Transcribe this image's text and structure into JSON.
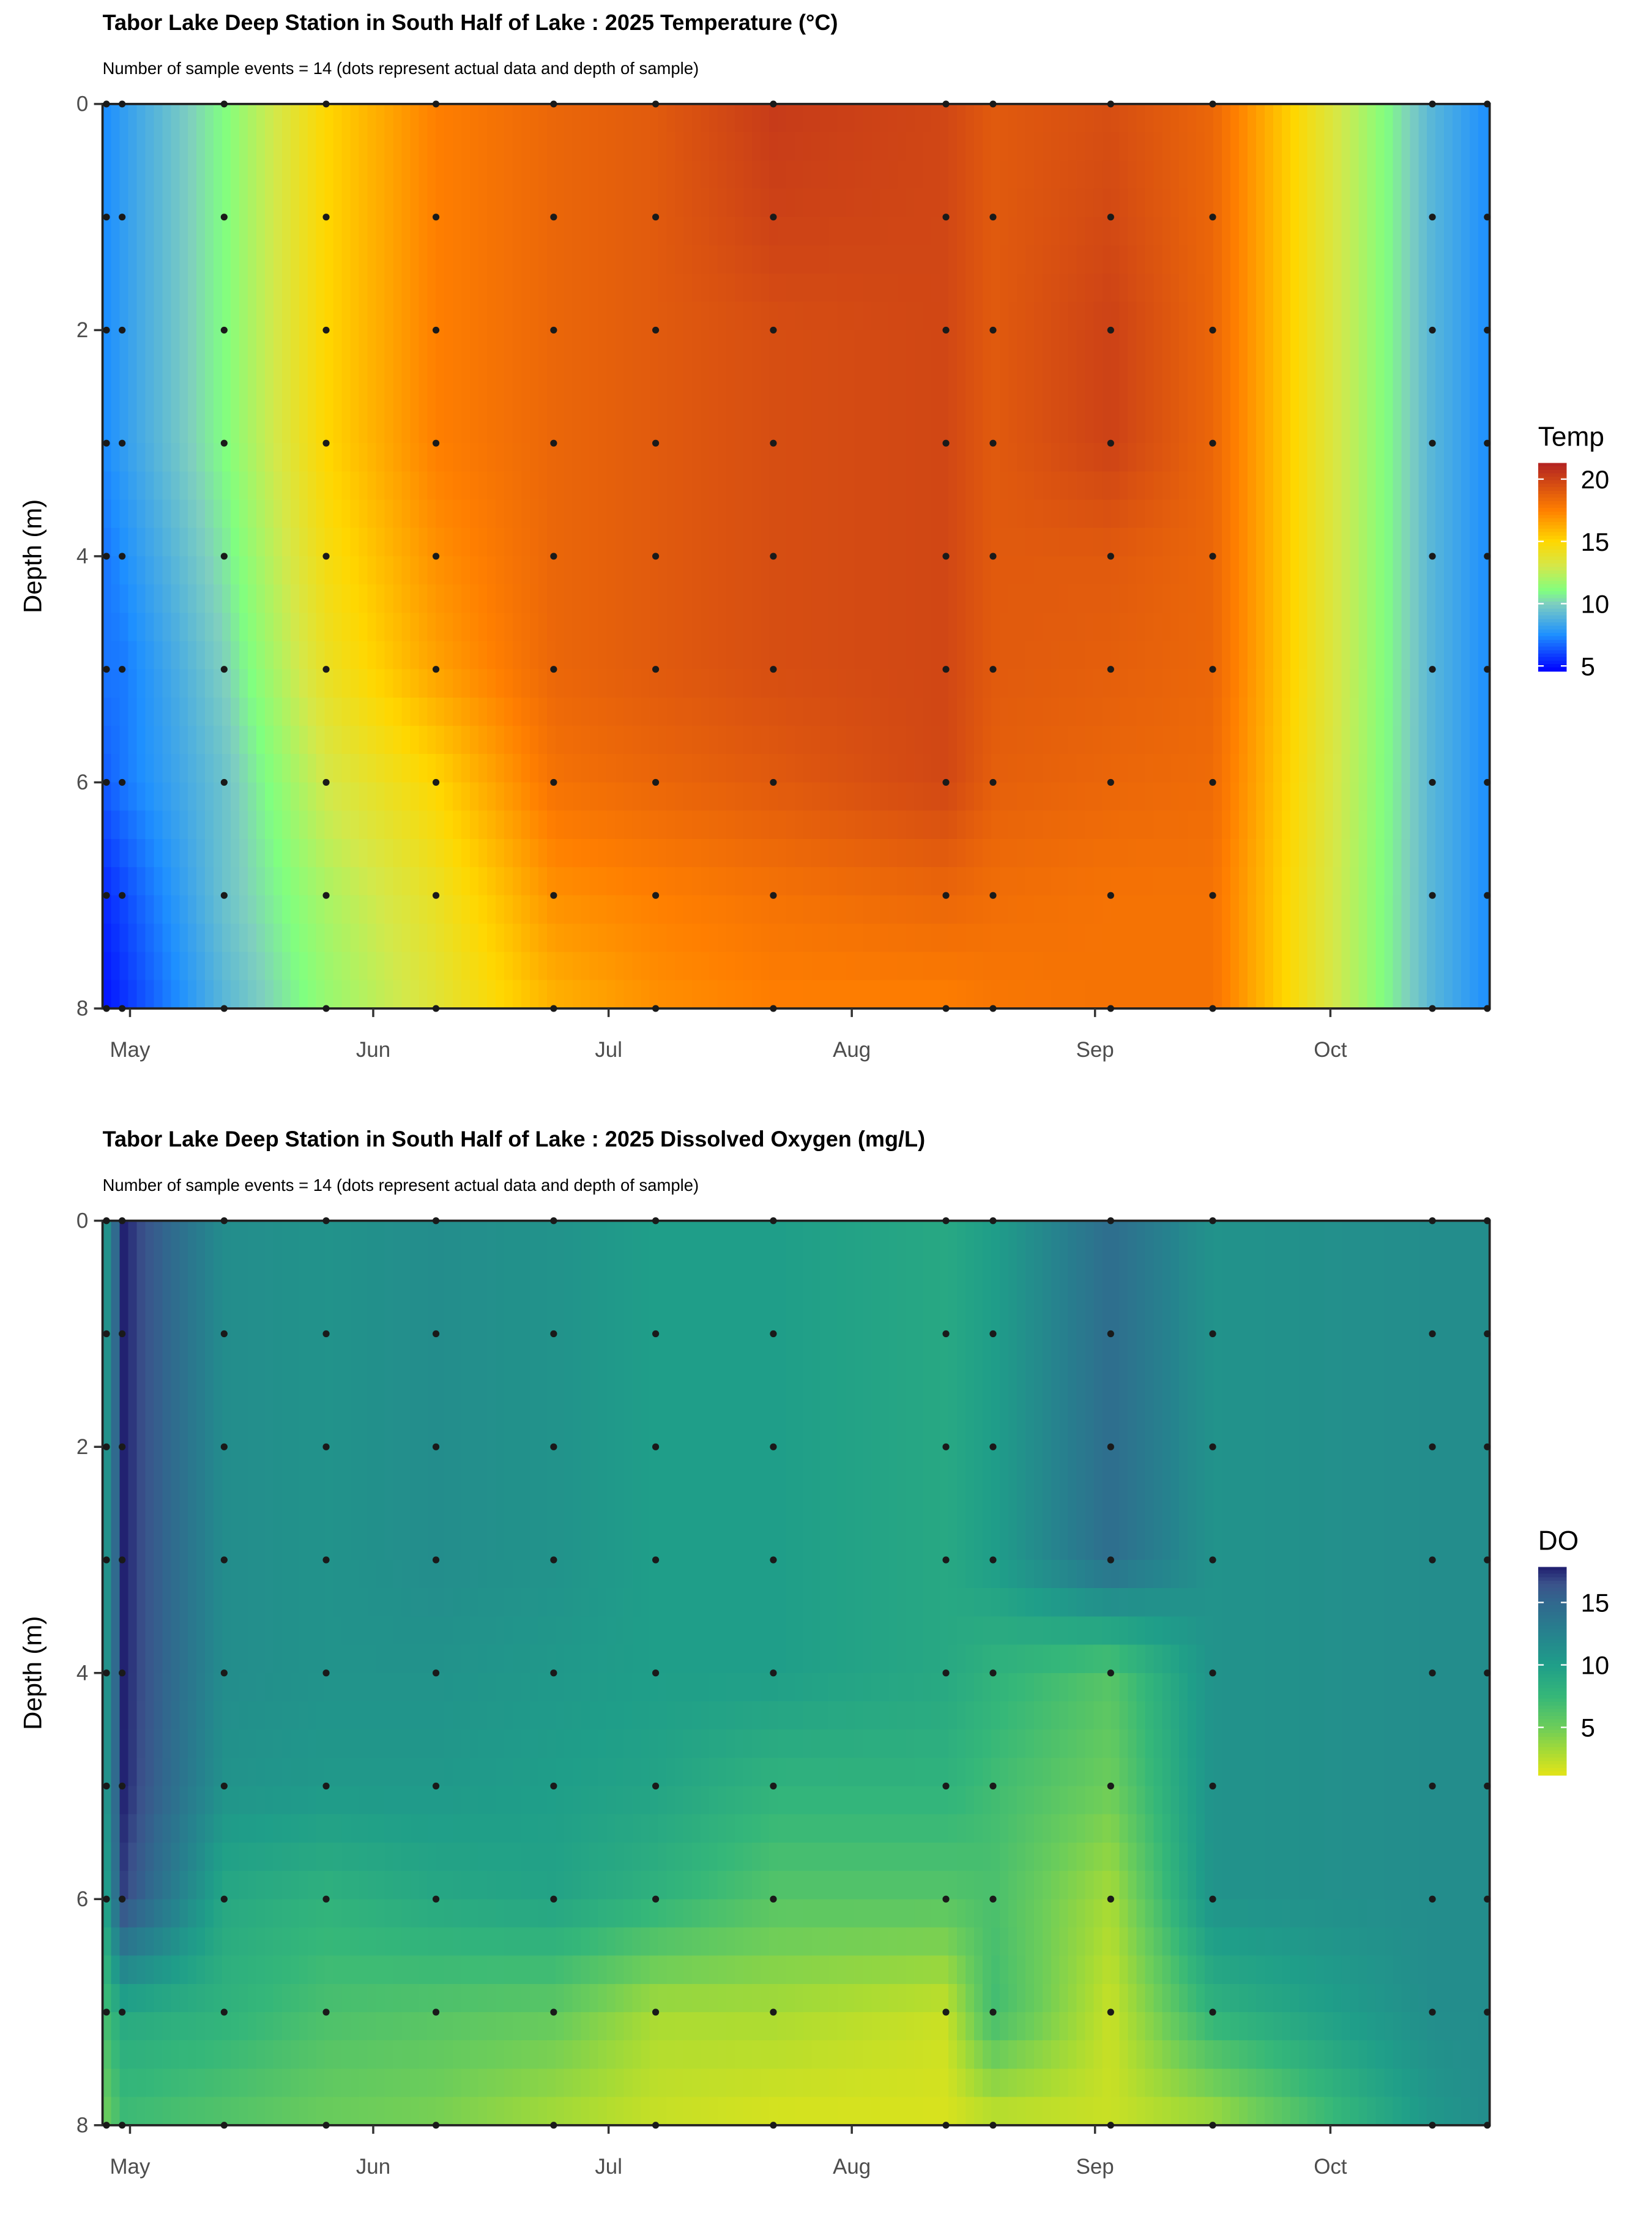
{
  "chart_data": [
    {
      "type": "heatmap",
      "title": "Tabor Lake Deep Station in South Half of Lake :  2025 Temperature (°C)",
      "subtitle": "Number of sample events = 14 (dots represent actual data and depth of sample)",
      "xlabel": "",
      "ylabel": "Depth (m)",
      "x_tick_labels": [
        "May",
        "Jun",
        "Jul",
        "Aug",
        "Sep",
        "Oct"
      ],
      "x_ticks": [
        "2025-05-01",
        "2025-06-01",
        "2025-07-01",
        "2025-08-01",
        "2025-09-01",
        "2025-10-01"
      ],
      "y_tick_labels": [
        "0",
        "2",
        "4",
        "6",
        "8"
      ],
      "y_ticks": [
        0,
        2,
        4,
        6,
        8
      ],
      "ylim": [
        0,
        8
      ],
      "y_reversed": true,
      "legend": {
        "title": "Temp",
        "placement": "right",
        "tick_labels": [
          "20",
          "15",
          "10",
          "5"
        ],
        "ticks": [
          20,
          15,
          10,
          5
        ],
        "range": [
          4.6,
          21.3
        ]
      },
      "colorscale": [
        [
          4.6,
          "#0000ff"
        ],
        [
          7.5,
          "#1e90ff"
        ],
        [
          10,
          "#7fcfbf"
        ],
        [
          11,
          "#80ff80"
        ],
        [
          13,
          "#d4e84a"
        ],
        [
          15,
          "#ffd700"
        ],
        [
          17.5,
          "#ff7f00"
        ],
        [
          21.3,
          "#b22222"
        ]
      ],
      "dates": [
        "2025-04-28",
        "2025-04-30",
        "2025-05-13",
        "2025-05-26",
        "2025-06-09",
        "2025-06-24",
        "2025-07-07",
        "2025-07-22",
        "2025-08-13",
        "2025-08-19",
        "2025-09-03",
        "2025-09-16",
        "2025-10-14",
        "2025-10-21"
      ],
      "depths": [
        0,
        1,
        2,
        3,
        4,
        5,
        6,
        7,
        8
      ],
      "values": [
        [
          7.5,
          7.5,
          7.5,
          7.5,
          7,
          7,
          6.5,
          5.5,
          5
        ],
        [
          8,
          8,
          8,
          8,
          7.5,
          7,
          7,
          6,
          5.5
        ],
        [
          11,
          11,
          11,
          11,
          10.5,
          10,
          9.5,
          9.5,
          9
        ],
        [
          15,
          15,
          15,
          15,
          14.5,
          14,
          13,
          12,
          11.5
        ],
        [
          17.5,
          17.5,
          17.5,
          17.5,
          17,
          16.5,
          15,
          14,
          13.5
        ],
        [
          18.5,
          18.5,
          18.5,
          18.5,
          18.5,
          18.5,
          18,
          17,
          16
        ],
        [
          19,
          19,
          19,
          19,
          19,
          19,
          18.5,
          17.5,
          17
        ],
        [
          20.3,
          20,
          19.5,
          19.5,
          19.5,
          19.5,
          19,
          18,
          17.5
        ],
        [
          19.8,
          19.8,
          19.8,
          19.8,
          19.8,
          19.8,
          19.8,
          18.5,
          17.5
        ],
        [
          19,
          19,
          19,
          19,
          19,
          19,
          18.8,
          18.2,
          17.8
        ],
        [
          19.5,
          19.7,
          20,
          20,
          19,
          18.8,
          18.5,
          18,
          18
        ],
        [
          18.5,
          18.5,
          18.5,
          18.5,
          18.5,
          18.5,
          18.3,
          18,
          18
        ],
        [
          9,
          9,
          9,
          9,
          9,
          9,
          9,
          9,
          9
        ],
        [
          7.5,
          7.5,
          7.5,
          7.5,
          7.5,
          7.5,
          7.5,
          7.5,
          7.5
        ]
      ]
    },
    {
      "type": "heatmap",
      "title": "Tabor Lake Deep Station in South Half of Lake :  2025 Dissolved Oxygen (mg/L)",
      "subtitle": "Number of sample events = 14 (dots represent actual data and depth of sample)",
      "xlabel": "",
      "ylabel": "Depth (m)",
      "x_tick_labels": [
        "May",
        "Jun",
        "Jul",
        "Aug",
        "Sep",
        "Oct"
      ],
      "x_ticks": [
        "2025-05-01",
        "2025-06-01",
        "2025-07-01",
        "2025-08-01",
        "2025-09-01",
        "2025-10-01"
      ],
      "y_tick_labels": [
        "0",
        "2",
        "4",
        "6",
        "8"
      ],
      "y_ticks": [
        0,
        2,
        4,
        6,
        8
      ],
      "ylim": [
        0,
        8
      ],
      "y_reversed": true,
      "legend": {
        "title": "DO",
        "placement": "right",
        "tick_labels": [
          "15",
          "10",
          "5"
        ],
        "ticks": [
          15,
          10,
          5
        ],
        "range": [
          1.2,
          17.85
        ]
      },
      "colorscale": [
        [
          1.2,
          "#e3e418"
        ],
        [
          3,
          "#a8db34"
        ],
        [
          5,
          "#6ccd5a"
        ],
        [
          7.5,
          "#35b779"
        ],
        [
          10,
          "#1f9e89"
        ],
        [
          12.5,
          "#26828e"
        ],
        [
          15,
          "#31688e"
        ],
        [
          16.5,
          "#3b528b"
        ],
        [
          17.85,
          "#1f1c6e"
        ]
      ],
      "dates": [
        "2025-04-28",
        "2025-04-30",
        "2025-05-13",
        "2025-05-26",
        "2025-06-09",
        "2025-06-24",
        "2025-07-07",
        "2025-07-22",
        "2025-08-13",
        "2025-08-19",
        "2025-09-03",
        "2025-09-16",
        "2025-10-14",
        "2025-10-21"
      ],
      "depths": [
        0,
        1,
        2,
        3,
        4,
        5,
        6,
        7,
        8
      ],
      "values": [
        [
          11,
          11,
          11,
          11,
          11,
          11,
          10,
          7,
          5
        ],
        [
          17.8,
          17.8,
          17.8,
          17.8,
          17.8,
          17.8,
          17,
          9,
          7
        ],
        [
          11.5,
          11.5,
          11.5,
          11.5,
          11.5,
          11,
          9,
          8,
          6
        ],
        [
          11,
          11,
          11,
          11,
          11,
          10.5,
          8,
          6.5,
          5
        ],
        [
          11.5,
          11.5,
          11.5,
          11.5,
          11,
          10.5,
          9,
          6,
          4.5
        ],
        [
          11,
          11,
          11,
          11,
          10.5,
          10,
          9.5,
          5.5,
          3
        ],
        [
          10,
          10,
          10,
          10,
          10,
          9.5,
          8,
          3,
          2
        ],
        [
          10,
          10,
          10,
          10,
          10,
          8,
          6,
          3,
          1.5
        ],
        [
          9,
          9,
          9,
          9,
          9,
          8,
          6,
          2,
          1.5
        ],
        [
          10,
          10,
          10,
          10,
          8,
          7,
          6.5,
          7,
          2
        ],
        [
          14.5,
          14.5,
          14.5,
          14.5,
          6,
          5,
          3,
          2,
          2
        ],
        [
          11,
          11,
          11,
          11,
          11,
          11,
          11,
          8,
          3
        ],
        [
          11.5,
          11.5,
          11.5,
          11.5,
          11.5,
          11.5,
          11.5,
          11.5,
          10.5
        ],
        [
          11.5,
          11.5,
          11.5,
          11.5,
          11.5,
          11.5,
          11.5,
          11.5,
          11.5
        ]
      ]
    }
  ]
}
